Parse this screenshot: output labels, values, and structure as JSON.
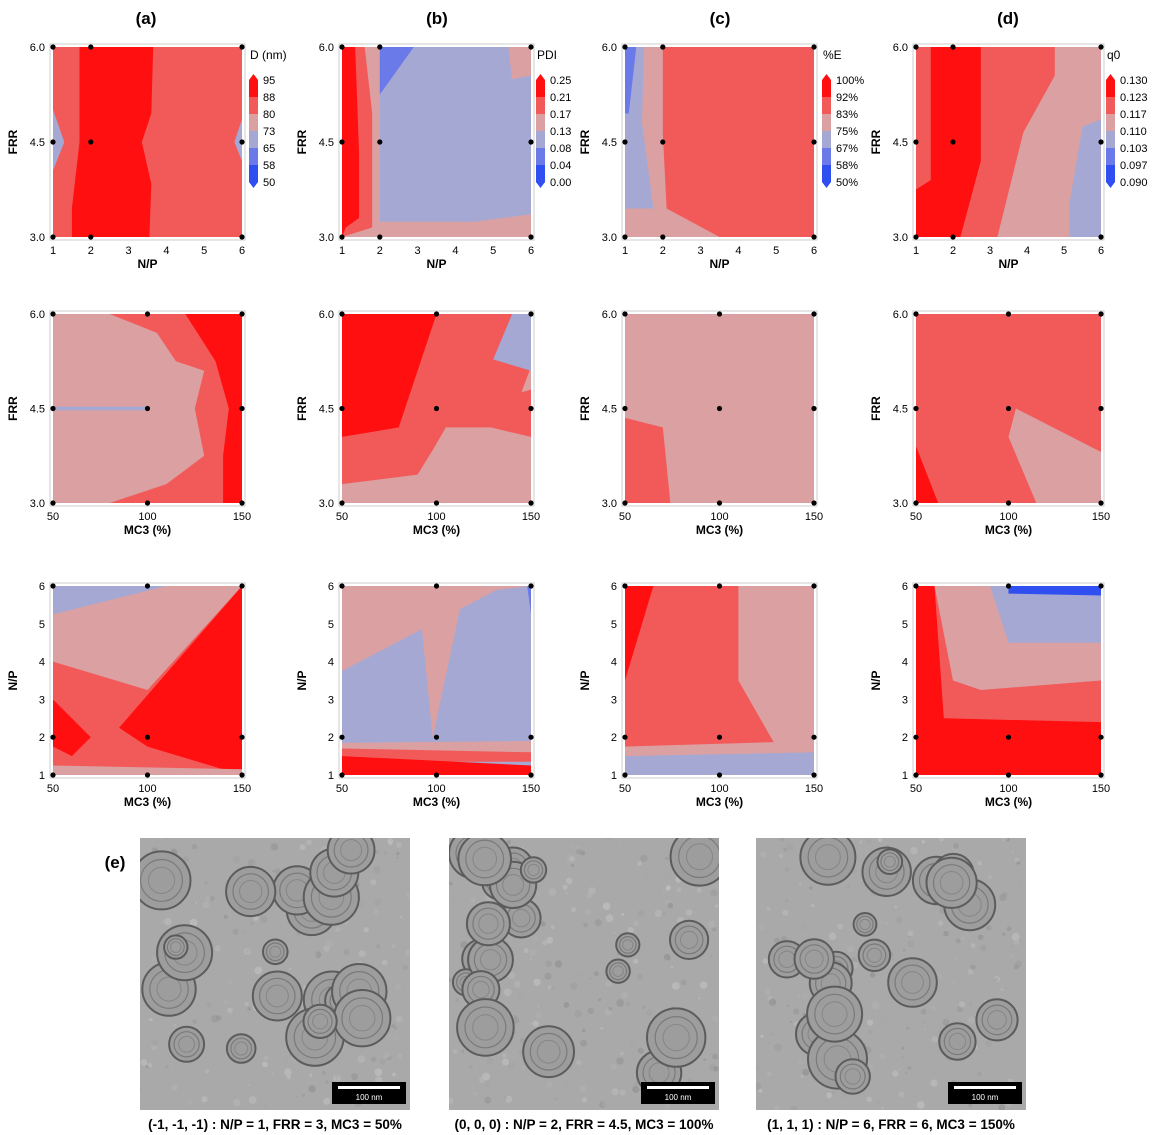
{
  "panel_labels": [
    "(a)",
    "(b)",
    "(c)",
    "(d)",
    "(e)"
  ],
  "colors": {
    "level_0": "#2f4ff0",
    "level_1": "#6a7ae8",
    "level_2": "#a6a8d4",
    "level_3": "#dba0a2",
    "level_4": "#f25a5a",
    "level_5": "#ff0f0f",
    "frame": "#cccccc",
    "point": "#000000"
  },
  "colorbars": [
    {
      "title": "D (nm)",
      "ticks": [
        "95",
        "88",
        "80",
        "73",
        "65",
        "58",
        "50"
      ]
    },
    {
      "title": "PDI",
      "ticks": [
        "0.25",
        "0.21",
        "0.17",
        "0.13",
        "0.08",
        "0.04",
        "0.00"
      ]
    },
    {
      "title": "%E",
      "ticks": [
        "100%",
        "92%",
        "83%",
        "75%",
        "67%",
        "58%",
        "50%"
      ]
    },
    {
      "title": "q0",
      "ticks": [
        "0.130",
        "0.123",
        "0.117",
        "0.110",
        "0.103",
        "0.097",
        "0.090"
      ]
    }
  ],
  "axes": {
    "row1": {
      "xlabel": "N/P",
      "ylabel": "FRR",
      "xticks": [
        "1",
        "2",
        "3",
        "4",
        "5",
        "6"
      ],
      "yticks": [
        "3.0",
        "4.5",
        "6.0"
      ]
    },
    "row2": {
      "xlabel": "MC3 (%)",
      "ylabel": "FRR",
      "xticks": [
        "50",
        "100",
        "150"
      ],
      "yticks": [
        "3.0",
        "4.5",
        "6.0"
      ]
    },
    "row3": {
      "xlabel": "MC3 (%)",
      "ylabel": "N/P",
      "xticks": [
        "50",
        "100",
        "150"
      ],
      "yticks": [
        "1",
        "2",
        "3",
        "4",
        "5",
        "6"
      ]
    }
  },
  "chart_data": [
    {
      "type": "heatmap",
      "panel": "(a)",
      "legend_title": "D (nm)",
      "x_label": "N/P",
      "y_label": "FRR",
      "x_range": [
        1,
        6
      ],
      "y_range": [
        3.0,
        6.0
      ]
    },
    {
      "type": "heatmap",
      "panel": "(b)",
      "legend_title": "PDI",
      "x_label": "N/P",
      "y_label": "FRR",
      "x_range": [
        1,
        6
      ],
      "y_range": [
        3.0,
        6.0
      ]
    },
    {
      "type": "heatmap",
      "panel": "(c)",
      "legend_title": "%E",
      "x_label": "N/P",
      "y_label": "FRR",
      "x_range": [
        1,
        6
      ],
      "y_range": [
        3.0,
        6.0
      ]
    },
    {
      "type": "heatmap",
      "panel": "(d)",
      "legend_title": "q0",
      "x_label": "N/P",
      "y_label": "FRR",
      "x_range": [
        1,
        6
      ],
      "y_range": [
        3.0,
        6.0
      ]
    },
    {
      "type": "heatmap",
      "panel": "(a)",
      "x_label": "MC3 (%)",
      "y_label": "FRR",
      "x_range": [
        50,
        150
      ],
      "y_range": [
        3.0,
        6.0
      ]
    },
    {
      "type": "heatmap",
      "panel": "(b)",
      "x_label": "MC3 (%)",
      "y_label": "FRR",
      "x_range": [
        50,
        150
      ],
      "y_range": [
        3.0,
        6.0
      ]
    },
    {
      "type": "heatmap",
      "panel": "(c)",
      "x_label": "MC3 (%)",
      "y_label": "FRR",
      "x_range": [
        50,
        150
      ],
      "y_range": [
        3.0,
        6.0
      ]
    },
    {
      "type": "heatmap",
      "panel": "(d)",
      "x_label": "MC3 (%)",
      "y_label": "FRR",
      "x_range": [
        50,
        150
      ],
      "y_range": [
        3.0,
        6.0
      ]
    },
    {
      "type": "heatmap",
      "panel": "(a)",
      "x_label": "MC3 (%)",
      "y_label": "N/P",
      "x_range": [
        50,
        150
      ],
      "y_range": [
        1,
        6
      ]
    },
    {
      "type": "heatmap",
      "panel": "(b)",
      "x_label": "MC3 (%)",
      "y_label": "N/P",
      "x_range": [
        50,
        150
      ],
      "y_range": [
        1,
        6
      ]
    },
    {
      "type": "heatmap",
      "panel": "(c)",
      "x_label": "MC3 (%)",
      "y_label": "N/P",
      "x_range": [
        50,
        150
      ],
      "y_range": [
        1,
        6
      ]
    },
    {
      "type": "heatmap",
      "panel": "(d)",
      "x_label": "MC3 (%)",
      "y_label": "N/P",
      "x_range": [
        50,
        150
      ],
      "y_range": [
        1,
        6
      ]
    }
  ],
  "micrographs": [
    {
      "scale_label": "100 nm",
      "caption": "(-1, -1, -1) : N/P = 1, FRR = 3, MC3 = 50%"
    },
    {
      "scale_label": "100 nm",
      "caption": "(0, 0, 0) : N/P = 2, FRR = 4.5, MC3 = 100%"
    },
    {
      "scale_label": "100 nm",
      "caption": "(1, 1, 1) : N/P = 6, FRR = 6, MC3 = 150%"
    }
  ]
}
